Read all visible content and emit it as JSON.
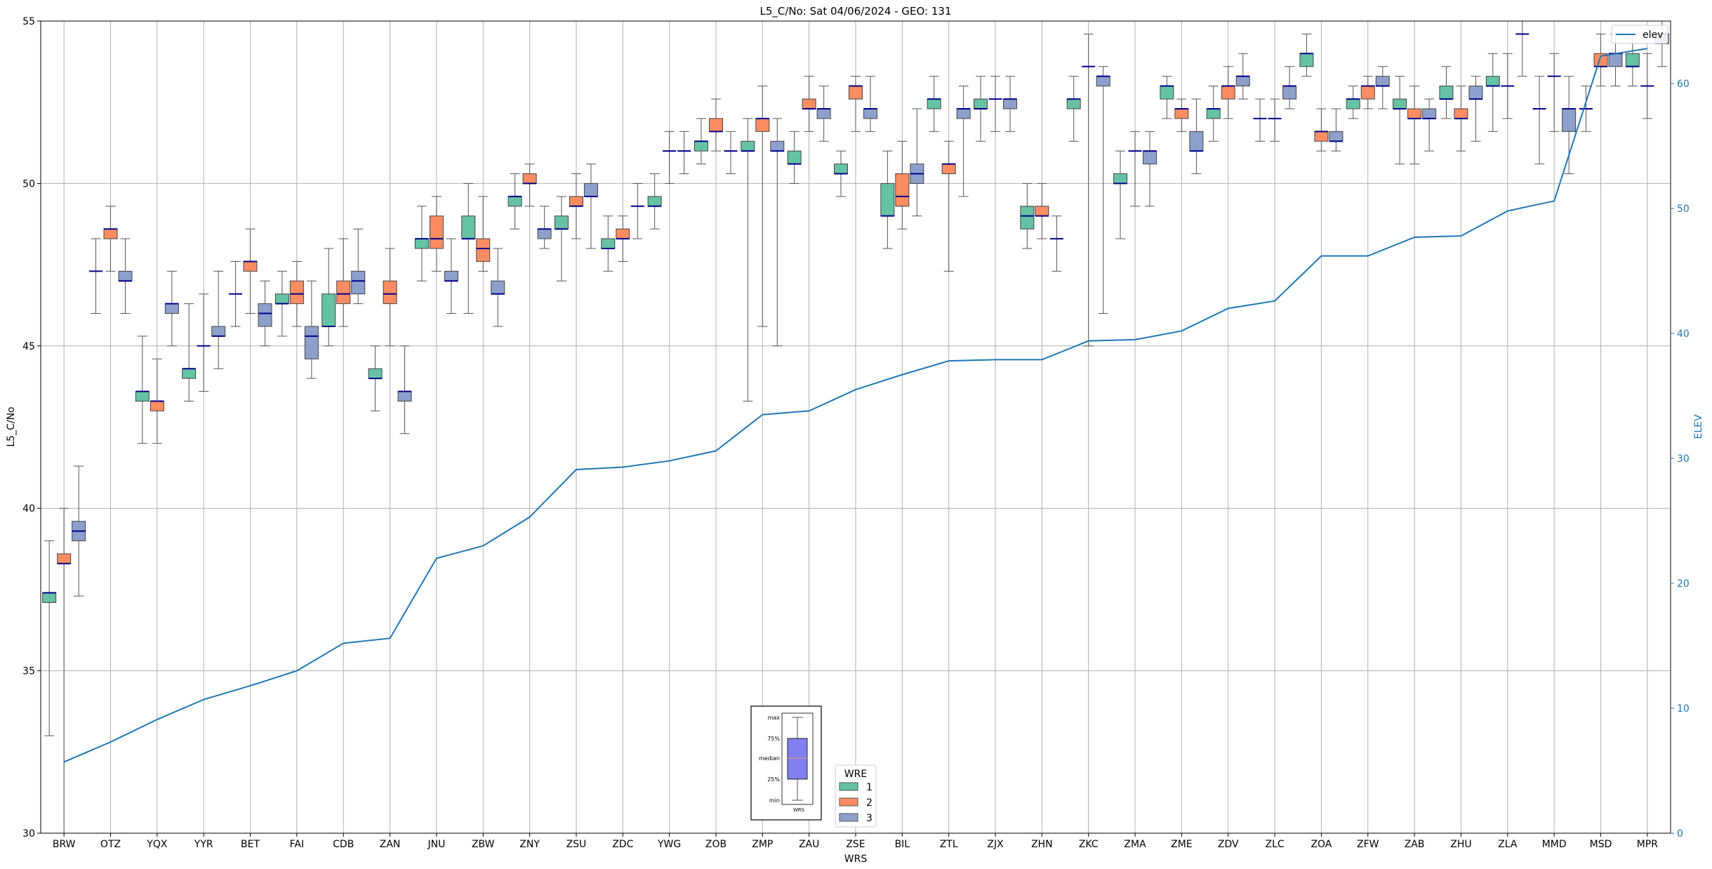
{
  "chart_data": {
    "type": "box",
    "title": "L5_C/No: Sat 04/06/2024 - GEO: 131",
    "xlabel": "WRS",
    "ylabel": "L5_C/No",
    "y2label": "ELEV",
    "ylim": [
      30,
      55
    ],
    "y2lim": [
      0,
      65
    ],
    "yticks": [
      "30",
      "35",
      "40",
      "45",
      "50",
      "55"
    ],
    "y2ticks": [
      "0",
      "10",
      "20",
      "30",
      "40",
      "50",
      "60"
    ],
    "grid": true,
    "categories": [
      "BRW",
      "OTZ",
      "YQX",
      "YYR",
      "BET",
      "FAI",
      "CDB",
      "ZAN",
      "JNU",
      "ZBW",
      "ZNY",
      "ZSU",
      "ZDC",
      "YWG",
      "ZOB",
      "ZMP",
      "ZAU",
      "ZSE",
      "BIL",
      "ZTL",
      "ZJX",
      "ZHN",
      "ZKC",
      "ZMA",
      "ZME",
      "ZDV",
      "ZLC",
      "ZOA",
      "ZFW",
      "ZAB",
      "ZHU",
      "ZLA",
      "MMD",
      "MSD",
      "MPR"
    ],
    "wre_colors": {
      "1": "#66c2a5",
      "2": "#fc8d62",
      "3": "#8da0cb"
    },
    "median_color": "#00008b",
    "legend_title": "WRE",
    "legend_labels": [
      "1",
      "2",
      "3"
    ],
    "elev_series": {
      "name": "elev",
      "color": "#1f77b4",
      "values": [
        5.7,
        7.3,
        9.1,
        10.7,
        11.8,
        13.0,
        15.2,
        15.6,
        22.0,
        23.0,
        25.3,
        29.1,
        29.3,
        29.8,
        30.6,
        33.5,
        33.8,
        35.5,
        36.7,
        37.8,
        37.9,
        37.9,
        39.4,
        39.5,
        40.2,
        42.0,
        42.6,
        46.2,
        46.2,
        47.7,
        47.8,
        49.8,
        50.6,
        62.2,
        62.8
      ]
    },
    "boxes": [
      {
        "station": "BRW",
        "wre": 1,
        "min": 33.0,
        "q1": 37.1,
        "median": 37.4,
        "q3": 37.4,
        "max": 39.0
      },
      {
        "station": "BRW",
        "wre": 2,
        "min": 30.0,
        "q1": 38.3,
        "median": 38.3,
        "q3": 38.6,
        "max": 40.0
      },
      {
        "station": "BRW",
        "wre": 3,
        "min": 37.3,
        "q1": 39.0,
        "median": 39.3,
        "q3": 39.6,
        "max": 41.3
      },
      {
        "station": "OTZ",
        "wre": 1,
        "min": 46.0,
        "q1": 47.3,
        "median": 47.3,
        "q3": 47.3,
        "max": 48.3
      },
      {
        "station": "OTZ",
        "wre": 2,
        "min": 47.3,
        "q1": 48.3,
        "median": 48.6,
        "q3": 48.6,
        "max": 49.3
      },
      {
        "station": "OTZ",
        "wre": 3,
        "min": 46.0,
        "q1": 47.0,
        "median": 47.0,
        "q3": 47.3,
        "max": 48.3
      },
      {
        "station": "YQX",
        "wre": 1,
        "min": 42.0,
        "q1": 43.3,
        "median": 43.6,
        "q3": 43.6,
        "max": 45.3
      },
      {
        "station": "YQX",
        "wre": 2,
        "min": 42.0,
        "q1": 43.0,
        "median": 43.3,
        "q3": 43.3,
        "max": 44.6
      },
      {
        "station": "YQX",
        "wre": 3,
        "min": 45.0,
        "q1": 46.0,
        "median": 46.3,
        "q3": 46.3,
        "max": 47.3
      },
      {
        "station": "YYR",
        "wre": 1,
        "min": 43.3,
        "q1": 44.0,
        "median": 44.3,
        "q3": 44.3,
        "max": 46.3
      },
      {
        "station": "YYR",
        "wre": 2,
        "min": 43.6,
        "q1": 45.0,
        "median": 45.0,
        "q3": 45.0,
        "max": 46.6
      },
      {
        "station": "YYR",
        "wre": 3,
        "min": 44.3,
        "q1": 45.3,
        "median": 45.3,
        "q3": 45.6,
        "max": 47.3
      },
      {
        "station": "BET",
        "wre": 1,
        "min": 45.6,
        "q1": 46.6,
        "median": 46.6,
        "q3": 46.6,
        "max": 47.6
      },
      {
        "station": "BET",
        "wre": 2,
        "min": 46.0,
        "q1": 47.3,
        "median": 47.6,
        "q3": 47.6,
        "max": 48.6
      },
      {
        "station": "BET",
        "wre": 3,
        "min": 45.0,
        "q1": 45.6,
        "median": 46.0,
        "q3": 46.3,
        "max": 47.0
      },
      {
        "station": "FAI",
        "wre": 1,
        "min": 45.3,
        "q1": 46.3,
        "median": 46.3,
        "q3": 46.6,
        "max": 47.3
      },
      {
        "station": "FAI",
        "wre": 2,
        "min": 45.6,
        "q1": 46.3,
        "median": 46.6,
        "q3": 47.0,
        "max": 47.6
      },
      {
        "station": "FAI",
        "wre": 3,
        "min": 44.0,
        "q1": 44.6,
        "median": 45.3,
        "q3": 45.6,
        "max": 47.0
      },
      {
        "station": "CDB",
        "wre": 1,
        "min": 45.0,
        "q1": 45.6,
        "median": 45.6,
        "q3": 46.6,
        "max": 48.0
      },
      {
        "station": "CDB",
        "wre": 2,
        "min": 45.6,
        "q1": 46.3,
        "median": 46.6,
        "q3": 47.0,
        "max": 48.3
      },
      {
        "station": "CDB",
        "wre": 3,
        "min": 46.3,
        "q1": 46.6,
        "median": 47.0,
        "q3": 47.3,
        "max": 48.6
      },
      {
        "station": "ZAN",
        "wre": 1,
        "min": 43.0,
        "q1": 44.0,
        "median": 44.0,
        "q3": 44.3,
        "max": 45.0
      },
      {
        "station": "ZAN",
        "wre": 2,
        "min": 45.0,
        "q1": 46.3,
        "median": 46.6,
        "q3": 47.0,
        "max": 48.0
      },
      {
        "station": "ZAN",
        "wre": 3,
        "min": 42.3,
        "q1": 43.3,
        "median": 43.6,
        "q3": 43.6,
        "max": 45.0
      },
      {
        "station": "JNU",
        "wre": 1,
        "min": 47.0,
        "q1": 48.0,
        "median": 48.3,
        "q3": 48.3,
        "max": 49.3
      },
      {
        "station": "JNU",
        "wre": 2,
        "min": 47.3,
        "q1": 48.0,
        "median": 48.3,
        "q3": 49.0,
        "max": 49.6
      },
      {
        "station": "JNU",
        "wre": 3,
        "min": 46.0,
        "q1": 47.0,
        "median": 47.0,
        "q3": 47.3,
        "max": 48.3
      },
      {
        "station": "ZBW",
        "wre": 1,
        "min": 46.0,
        "q1": 48.3,
        "median": 48.3,
        "q3": 49.0,
        "max": 50.0
      },
      {
        "station": "ZBW",
        "wre": 2,
        "min": 47.3,
        "q1": 47.6,
        "median": 48.0,
        "q3": 48.3,
        "max": 49.6
      },
      {
        "station": "ZBW",
        "wre": 3,
        "min": 45.6,
        "q1": 46.6,
        "median": 46.6,
        "q3": 47.0,
        "max": 48.0
      },
      {
        "station": "ZNY",
        "wre": 1,
        "min": 48.6,
        "q1": 49.3,
        "median": 49.6,
        "q3": 49.6,
        "max": 50.3
      },
      {
        "station": "ZNY",
        "wre": 2,
        "min": 49.3,
        "q1": 50.0,
        "median": 50.0,
        "q3": 50.3,
        "max": 50.6
      },
      {
        "station": "ZNY",
        "wre": 3,
        "min": 48.0,
        "q1": 48.3,
        "median": 48.6,
        "q3": 48.6,
        "max": 49.3
      },
      {
        "station": "ZSU",
        "wre": 1,
        "min": 47.0,
        "q1": 48.6,
        "median": 48.6,
        "q3": 49.0,
        "max": 49.6
      },
      {
        "station": "ZSU",
        "wre": 2,
        "min": 48.3,
        "q1": 49.3,
        "median": 49.3,
        "q3": 49.6,
        "max": 50.3
      },
      {
        "station": "ZSU",
        "wre": 3,
        "min": 48.0,
        "q1": 49.6,
        "median": 49.6,
        "q3": 50.0,
        "max": 50.6
      },
      {
        "station": "ZDC",
        "wre": 1,
        "min": 47.3,
        "q1": 48.0,
        "median": 48.0,
        "q3": 48.3,
        "max": 49.0
      },
      {
        "station": "ZDC",
        "wre": 2,
        "min": 47.6,
        "q1": 48.3,
        "median": 48.3,
        "q3": 48.6,
        "max": 49.0
      },
      {
        "station": "ZDC",
        "wre": 3,
        "min": 48.3,
        "q1": 49.3,
        "median": 49.3,
        "q3": 49.3,
        "max": 50.0
      },
      {
        "station": "YWG",
        "wre": 1,
        "min": 48.6,
        "q1": 49.3,
        "median": 49.3,
        "q3": 49.6,
        "max": 50.3
      },
      {
        "station": "YWG",
        "wre": 2,
        "min": 50.0,
        "q1": 51.0,
        "median": 51.0,
        "q3": 51.0,
        "max": 51.6
      },
      {
        "station": "YWG",
        "wre": 3,
        "min": 50.3,
        "q1": 51.0,
        "median": 51.0,
        "q3": 51.0,
        "max": 51.6
      },
      {
        "station": "ZOB",
        "wre": 1,
        "min": 50.6,
        "q1": 51.0,
        "median": 51.3,
        "q3": 51.3,
        "max": 52.0
      },
      {
        "station": "ZOB",
        "wre": 2,
        "min": 51.0,
        "q1": 51.6,
        "median": 51.6,
        "q3": 52.0,
        "max": 52.6
      },
      {
        "station": "ZOB",
        "wre": 3,
        "min": 50.3,
        "q1": 51.0,
        "median": 51.0,
        "q3": 51.0,
        "max": 51.6
      },
      {
        "station": "ZMP",
        "wre": 1,
        "min": 43.3,
        "q1": 51.0,
        "median": 51.0,
        "q3": 51.3,
        "max": 52.0
      },
      {
        "station": "ZMP",
        "wre": 2,
        "min": 45.6,
        "q1": 51.6,
        "median": 52.0,
        "q3": 52.0,
        "max": 53.0
      },
      {
        "station": "ZMP",
        "wre": 3,
        "min": 45.0,
        "q1": 51.0,
        "median": 51.0,
        "q3": 51.3,
        "max": 52.0
      },
      {
        "station": "ZAU",
        "wre": 1,
        "min": 50.0,
        "q1": 50.6,
        "median": 50.6,
        "q3": 51.0,
        "max": 51.6
      },
      {
        "station": "ZAU",
        "wre": 2,
        "min": 51.6,
        "q1": 52.3,
        "median": 52.3,
        "q3": 52.6,
        "max": 53.3
      },
      {
        "station": "ZAU",
        "wre": 3,
        "min": 51.3,
        "q1": 52.0,
        "median": 52.3,
        "q3": 52.3,
        "max": 53.0
      },
      {
        "station": "ZSE",
        "wre": 1,
        "min": 49.6,
        "q1": 50.3,
        "median": 50.3,
        "q3": 50.6,
        "max": 51.0
      },
      {
        "station": "ZSE",
        "wre": 2,
        "min": 51.6,
        "q1": 52.6,
        "median": 53.0,
        "q3": 53.0,
        "max": 53.3
      },
      {
        "station": "ZSE",
        "wre": 3,
        "min": 51.6,
        "q1": 52.0,
        "median": 52.3,
        "q3": 52.3,
        "max": 53.3
      },
      {
        "station": "BIL",
        "wre": 1,
        "min": 48.0,
        "q1": 49.0,
        "median": 49.0,
        "q3": 50.0,
        "max": 51.0
      },
      {
        "station": "BIL",
        "wre": 2,
        "min": 48.6,
        "q1": 49.3,
        "median": 49.6,
        "q3": 50.3,
        "max": 51.3
      },
      {
        "station": "BIL",
        "wre": 3,
        "min": 49.0,
        "q1": 50.0,
        "median": 50.3,
        "q3": 50.6,
        "max": 52.3
      },
      {
        "station": "ZTL",
        "wre": 1,
        "min": 51.6,
        "q1": 52.3,
        "median": 52.6,
        "q3": 52.6,
        "max": 53.3
      },
      {
        "station": "ZTL",
        "wre": 2,
        "min": 47.3,
        "q1": 50.3,
        "median": 50.6,
        "q3": 50.6,
        "max": 51.3
      },
      {
        "station": "ZTL",
        "wre": 3,
        "min": 49.6,
        "q1": 52.0,
        "median": 52.3,
        "q3": 52.3,
        "max": 53.0
      },
      {
        "station": "ZJX",
        "wre": 1,
        "min": 51.3,
        "q1": 52.3,
        "median": 52.3,
        "q3": 52.6,
        "max": 53.3
      },
      {
        "station": "ZJX",
        "wre": 2,
        "min": 51.6,
        "q1": 52.6,
        "median": 52.6,
        "q3": 52.6,
        "max": 53.3
      },
      {
        "station": "ZJX",
        "wre": 3,
        "min": 51.6,
        "q1": 52.3,
        "median": 52.6,
        "q3": 52.6,
        "max": 53.3
      },
      {
        "station": "ZHN",
        "wre": 1,
        "min": 48.0,
        "q1": 48.6,
        "median": 49.0,
        "q3": 49.3,
        "max": 50.0
      },
      {
        "station": "ZHN",
        "wre": 2,
        "min": 48.3,
        "q1": 49.0,
        "median": 49.0,
        "q3": 49.3,
        "max": 50.0
      },
      {
        "station": "ZHN",
        "wre": 3,
        "min": 47.3,
        "q1": 48.3,
        "median": 48.3,
        "q3": 48.3,
        "max": 49.0
      },
      {
        "station": "ZKC",
        "wre": 1,
        "min": 51.3,
        "q1": 52.3,
        "median": 52.6,
        "q3": 52.6,
        "max": 53.3
      },
      {
        "station": "ZKC",
        "wre": 2,
        "min": 45.0,
        "q1": 53.6,
        "median": 53.6,
        "q3": 53.6,
        "max": 54.6
      },
      {
        "station": "ZKC",
        "wre": 3,
        "min": 46.0,
        "q1": 53.0,
        "median": 53.3,
        "q3": 53.3,
        "max": 53.6
      },
      {
        "station": "ZMA",
        "wre": 1,
        "min": 48.3,
        "q1": 50.0,
        "median": 50.0,
        "q3": 50.3,
        "max": 51.0
      },
      {
        "station": "ZMA",
        "wre": 2,
        "min": 49.3,
        "q1": 51.0,
        "median": 51.0,
        "q3": 51.0,
        "max": 51.6
      },
      {
        "station": "ZMA",
        "wre": 3,
        "min": 49.3,
        "q1": 50.6,
        "median": 51.0,
        "q3": 51.0,
        "max": 51.6
      },
      {
        "station": "ZME",
        "wre": 1,
        "min": 52.0,
        "q1": 52.6,
        "median": 53.0,
        "q3": 53.0,
        "max": 53.3
      },
      {
        "station": "ZME",
        "wre": 2,
        "min": 51.6,
        "q1": 52.0,
        "median": 52.3,
        "q3": 52.3,
        "max": 52.6
      },
      {
        "station": "ZME",
        "wre": 3,
        "min": 50.3,
        "q1": 51.0,
        "median": 51.0,
        "q3": 51.6,
        "max": 52.6
      },
      {
        "station": "ZDV",
        "wre": 1,
        "min": 51.3,
        "q1": 52.0,
        "median": 52.3,
        "q3": 52.3,
        "max": 53.0
      },
      {
        "station": "ZDV",
        "wre": 2,
        "min": 52.0,
        "q1": 52.6,
        "median": 53.0,
        "q3": 53.0,
        "max": 53.6
      },
      {
        "station": "ZDV",
        "wre": 3,
        "min": 52.6,
        "q1": 53.0,
        "median": 53.3,
        "q3": 53.3,
        "max": 54.0
      },
      {
        "station": "ZLC",
        "wre": 1,
        "min": 51.3,
        "q1": 52.0,
        "median": 52.0,
        "q3": 52.0,
        "max": 52.6
      },
      {
        "station": "ZLC",
        "wre": 2,
        "min": 51.3,
        "q1": 52.0,
        "median": 52.0,
        "q3": 52.0,
        "max": 52.6
      },
      {
        "station": "ZLC",
        "wre": 3,
        "min": 52.3,
        "q1": 52.6,
        "median": 53.0,
        "q3": 53.0,
        "max": 53.6
      },
      {
        "station": "ZOA",
        "wre": 1,
        "min": 53.3,
        "q1": 53.6,
        "median": 54.0,
        "q3": 54.0,
        "max": 54.6
      },
      {
        "station": "ZOA",
        "wre": 2,
        "min": 51.0,
        "q1": 51.3,
        "median": 51.6,
        "q3": 51.6,
        "max": 52.3
      },
      {
        "station": "ZOA",
        "wre": 3,
        "min": 51.0,
        "q1": 51.3,
        "median": 51.3,
        "q3": 51.6,
        "max": 52.3
      },
      {
        "station": "ZFW",
        "wre": 1,
        "min": 52.0,
        "q1": 52.3,
        "median": 52.6,
        "q3": 52.6,
        "max": 53.0
      },
      {
        "station": "ZFW",
        "wre": 2,
        "min": 52.3,
        "q1": 52.6,
        "median": 53.0,
        "q3": 53.0,
        "max": 53.3
      },
      {
        "station": "ZFW",
        "wre": 3,
        "min": 52.3,
        "q1": 53.0,
        "median": 53.0,
        "q3": 53.3,
        "max": 53.6
      },
      {
        "station": "ZAB",
        "wre": 1,
        "min": 50.6,
        "q1": 52.3,
        "median": 52.3,
        "q3": 52.6,
        "max": 53.3
      },
      {
        "station": "ZAB",
        "wre": 2,
        "min": 50.6,
        "q1": 52.0,
        "median": 52.0,
        "q3": 52.3,
        "max": 53.0
      },
      {
        "station": "ZAB",
        "wre": 3,
        "min": 51.0,
        "q1": 52.0,
        "median": 52.0,
        "q3": 52.3,
        "max": 52.6
      },
      {
        "station": "ZHU",
        "wre": 1,
        "min": 52.0,
        "q1": 52.6,
        "median": 52.6,
        "q3": 53.0,
        "max": 53.6
      },
      {
        "station": "ZHU",
        "wre": 2,
        "min": 51.0,
        "q1": 52.0,
        "median": 52.0,
        "q3": 52.3,
        "max": 53.0
      },
      {
        "station": "ZHU",
        "wre": 3,
        "min": 51.3,
        "q1": 52.6,
        "median": 52.6,
        "q3": 53.0,
        "max": 53.3
      },
      {
        "station": "ZLA",
        "wre": 1,
        "min": 51.6,
        "q1": 53.0,
        "median": 53.0,
        "q3": 53.3,
        "max": 54.0
      },
      {
        "station": "ZLA",
        "wre": 2,
        "min": 52.0,
        "q1": 53.0,
        "median": 53.0,
        "q3": 53.0,
        "max": 54.0
      },
      {
        "station": "ZLA",
        "wre": 3,
        "min": 53.3,
        "q1": 54.6,
        "median": 54.6,
        "q3": 54.6,
        "max": 55.0
      },
      {
        "station": "MMD",
        "wre": 1,
        "min": 50.6,
        "q1": 52.3,
        "median": 52.3,
        "q3": 52.3,
        "max": 53.3
      },
      {
        "station": "MMD",
        "wre": 2,
        "min": 51.6,
        "q1": 53.3,
        "median": 53.3,
        "q3": 53.3,
        "max": 54.0
      },
      {
        "station": "MMD",
        "wre": 3,
        "min": 50.3,
        "q1": 51.6,
        "median": 52.3,
        "q3": 52.3,
        "max": 53.3
      },
      {
        "station": "MSD",
        "wre": 1,
        "min": 51.6,
        "q1": 52.3,
        "median": 52.3,
        "q3": 52.3,
        "max": 53.0
      },
      {
        "station": "MSD",
        "wre": 2,
        "min": 53.0,
        "q1": 53.6,
        "median": 53.6,
        "q3": 54.0,
        "max": 54.6
      },
      {
        "station": "MSD",
        "wre": 3,
        "min": 53.0,
        "q1": 53.6,
        "median": 54.0,
        "q3": 54.0,
        "max": 54.6
      },
      {
        "station": "MPR",
        "wre": 1,
        "min": 53.0,
        "q1": 53.6,
        "median": 53.6,
        "q3": 54.0,
        "max": 54.6
      },
      {
        "station": "MPR",
        "wre": 2,
        "min": 52.0,
        "q1": 53.0,
        "median": 53.0,
        "q3": 53.0,
        "max": 54.0
      },
      {
        "station": "MPR",
        "wre": 3,
        "min": 53.6,
        "q1": 54.3,
        "median": 54.6,
        "q3": 54.6,
        "max": 55.0
      }
    ],
    "inset_key": {
      "labels": [
        "max",
        "75%",
        "median",
        "25%",
        "min"
      ],
      "xlabel": "WRS",
      "box_color": "#8080f0"
    }
  }
}
